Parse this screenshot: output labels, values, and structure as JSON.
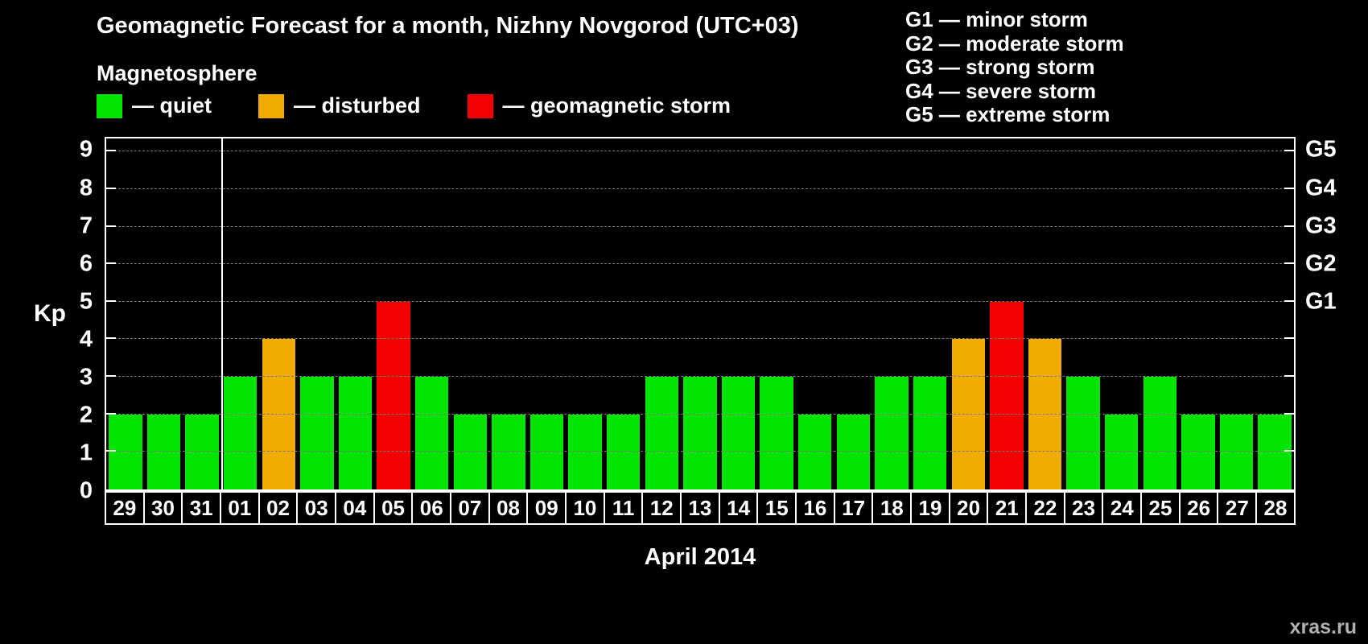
{
  "title": "Geomagnetic Forecast for a month, Nizhny Novgorod (UTC+03)",
  "subtitle": "Magnetosphere",
  "legend": [
    {
      "key": "quiet",
      "label": "— quiet",
      "color": "#00e400"
    },
    {
      "key": "disturbed",
      "label": "— disturbed",
      "color": "#f0ad00"
    },
    {
      "key": "storm",
      "label": "— geomagnetic storm",
      "color": "#f40000"
    }
  ],
  "storm_scale": [
    "G1 — minor storm",
    "G2 — moderate storm",
    "G3 — strong storm",
    "G4 — severe storm",
    "G5 — extreme storm"
  ],
  "watermark": "xras.ru",
  "chart_data": {
    "type": "bar",
    "title": "Geomagnetic Forecast for a month, Nizhny Novgorod (UTC+03)",
    "xlabel": "April 2014",
    "ylabel": "Kp",
    "ylim": [
      0,
      9
    ],
    "yticks": [
      0,
      1,
      2,
      3,
      4,
      5,
      6,
      7,
      8,
      9
    ],
    "grid": "horizontal-dashed",
    "legend_position": "top-left",
    "categories": [
      "29",
      "30",
      "31",
      "01",
      "02",
      "03",
      "04",
      "05",
      "06",
      "07",
      "08",
      "09",
      "10",
      "11",
      "12",
      "13",
      "14",
      "15",
      "16",
      "17",
      "18",
      "19",
      "20",
      "21",
      "22",
      "23",
      "24",
      "25",
      "26",
      "27",
      "28"
    ],
    "values": [
      2,
      2,
      2,
      3,
      4,
      3,
      3,
      5,
      3,
      2,
      2,
      2,
      2,
      2,
      3,
      3,
      3,
      3,
      2,
      2,
      3,
      3,
      4,
      5,
      4,
      3,
      2,
      3,
      2,
      2,
      2
    ],
    "colors": [
      "quiet",
      "quiet",
      "quiet",
      "quiet",
      "disturbed",
      "quiet",
      "quiet",
      "storm",
      "quiet",
      "quiet",
      "quiet",
      "quiet",
      "quiet",
      "quiet",
      "quiet",
      "quiet",
      "quiet",
      "quiet",
      "quiet",
      "quiet",
      "quiet",
      "quiet",
      "disturbed",
      "storm",
      "disturbed",
      "quiet",
      "quiet",
      "quiet",
      "quiet",
      "quiet",
      "quiet"
    ],
    "right_axis": [
      {
        "label": "G1",
        "kp": 5
      },
      {
        "label": "G2",
        "kp": 6
      },
      {
        "label": "G3",
        "kp": 7
      },
      {
        "label": "G4",
        "kp": 8
      },
      {
        "label": "G5",
        "kp": 9
      }
    ],
    "month_boundary_after_index": 2
  }
}
